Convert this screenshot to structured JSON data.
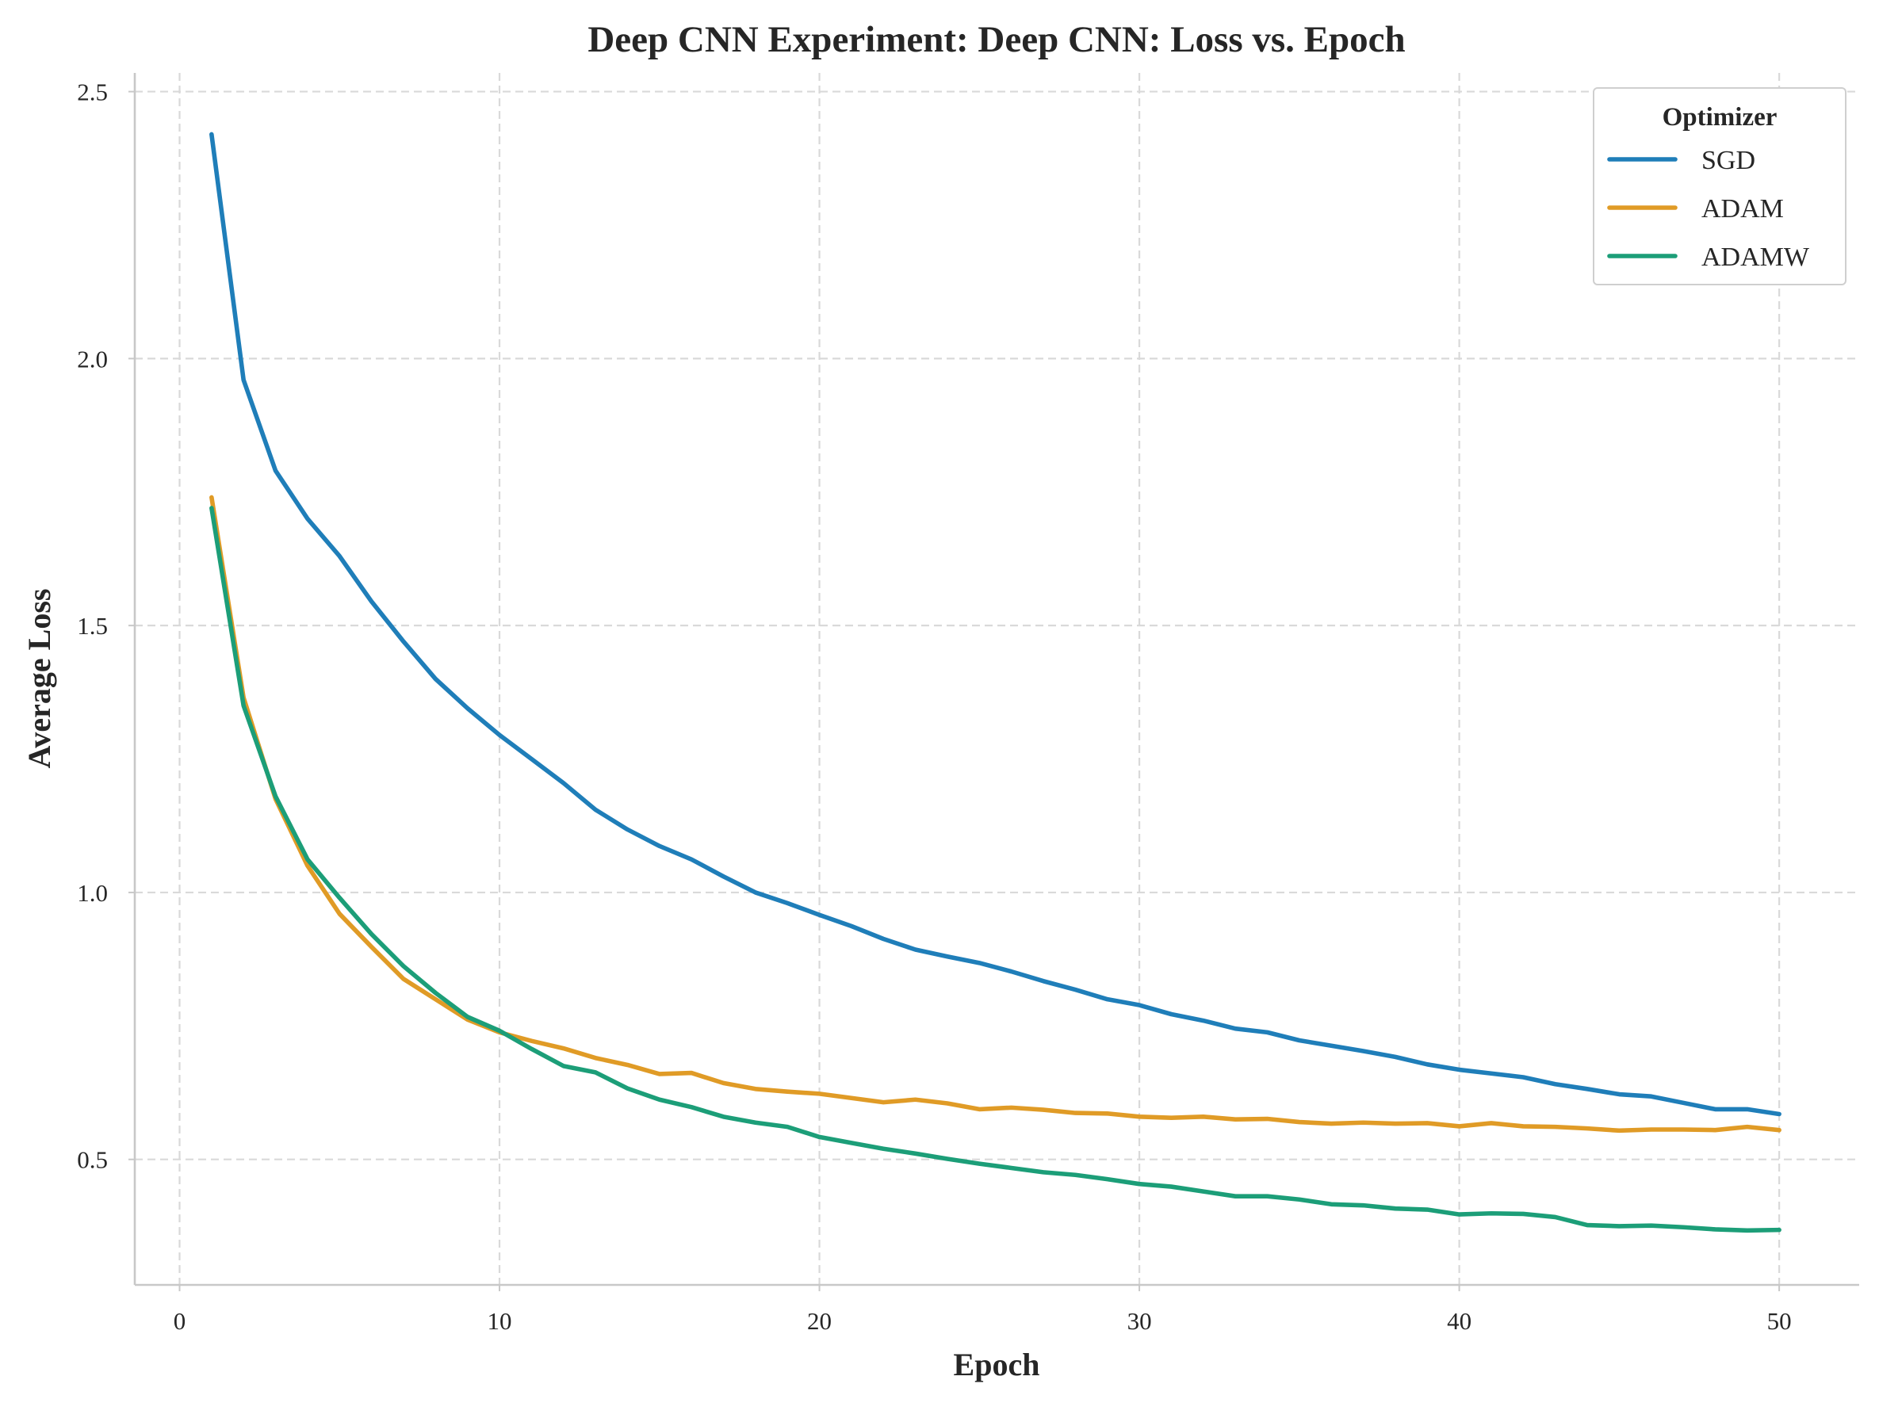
{
  "chart_data": {
    "type": "line",
    "title": "Deep CNN Experiment: Deep CNN: Loss vs. Epoch",
    "xlabel": "Epoch",
    "ylabel": "Average Loss",
    "xlim": [
      -1.4,
      52.5
    ],
    "ylim": [
      0.265,
      2.535
    ],
    "xticks": [
      0,
      10,
      20,
      30,
      40,
      50
    ],
    "yticks": [
      0.5,
      1.0,
      1.5,
      2.0,
      2.5
    ],
    "xtick_labels": [
      "0",
      "10",
      "20",
      "30",
      "40",
      "50"
    ],
    "ytick_labels": [
      "0.5",
      "1.0",
      "1.5",
      "2.0",
      "2.5"
    ],
    "grid": true,
    "legend": {
      "title": "Optimizer",
      "placement": "top-right"
    },
    "x": [
      1,
      2,
      3,
      4,
      5,
      6,
      7,
      8,
      9,
      10,
      11,
      12,
      13,
      14,
      15,
      16,
      17,
      18,
      19,
      20,
      21,
      22,
      23,
      24,
      25,
      26,
      27,
      28,
      29,
      30,
      31,
      32,
      33,
      34,
      35,
      36,
      37,
      38,
      39,
      40,
      41,
      42,
      43,
      44,
      45,
      46,
      47,
      48,
      49,
      50
    ],
    "series": [
      {
        "name": "SGD",
        "color": "#1f7eb9",
        "values": [
          2.42,
          1.96,
          1.79,
          1.7,
          1.63,
          1.545,
          1.47,
          1.4,
          1.345,
          1.295,
          1.25,
          1.205,
          1.155,
          1.118,
          1.087,
          1.062,
          1.03,
          1.0,
          0.98,
          0.958,
          0.937,
          0.913,
          0.893,
          0.88,
          0.868,
          0.852,
          0.834,
          0.818,
          0.8,
          0.789,
          0.772,
          0.76,
          0.745,
          0.738,
          0.723,
          0.713,
          0.703,
          0.692,
          0.678,
          0.668,
          0.661,
          0.654,
          0.641,
          0.632,
          0.622,
          0.618,
          0.606,
          0.594,
          0.594,
          0.585
        ]
      },
      {
        "name": "ADAM",
        "color": "#e09b26",
        "values": [
          1.74,
          1.365,
          1.175,
          1.05,
          0.96,
          0.898,
          0.838,
          0.8,
          0.762,
          0.738,
          0.722,
          0.708,
          0.69,
          0.677,
          0.66,
          0.662,
          0.643,
          0.632,
          0.627,
          0.623,
          0.615,
          0.607,
          0.612,
          0.605,
          0.594,
          0.597,
          0.593,
          0.587,
          0.586,
          0.58,
          0.578,
          0.58,
          0.575,
          0.576,
          0.57,
          0.567,
          0.569,
          0.567,
          0.568,
          0.562,
          0.568,
          0.562,
          0.561,
          0.558,
          0.554,
          0.556,
          0.556,
          0.555,
          0.561,
          0.555
        ]
      },
      {
        "name": "ADAMW",
        "color": "#1c9e78",
        "values": [
          1.72,
          1.35,
          1.18,
          1.062,
          0.99,
          0.922,
          0.862,
          0.812,
          0.767,
          0.741,
          0.707,
          0.675,
          0.663,
          0.633,
          0.612,
          0.598,
          0.58,
          0.569,
          0.561,
          0.542,
          0.531,
          0.52,
          0.511,
          0.501,
          0.492,
          0.484,
          0.476,
          0.471,
          0.463,
          0.454,
          0.449,
          0.44,
          0.431,
          0.431,
          0.425,
          0.416,
          0.414,
          0.408,
          0.406,
          0.397,
          0.399,
          0.398,
          0.392,
          0.377,
          0.375,
          0.376,
          0.373,
          0.369,
          0.367,
          0.368
        ]
      }
    ]
  }
}
